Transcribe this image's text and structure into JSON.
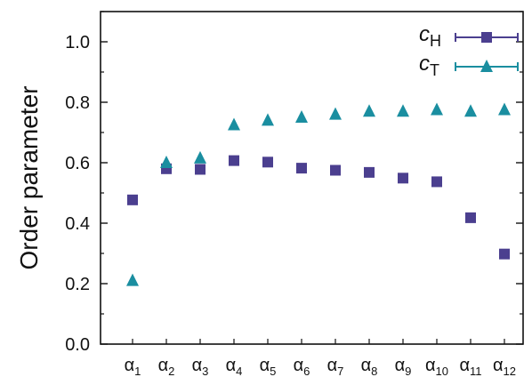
{
  "chart_data": {
    "type": "scatter",
    "title": "",
    "xlabel": "",
    "ylabel": "Order parameter",
    "ylim": [
      0.0,
      1.1
    ],
    "yticks": [
      "0.0",
      "0.2",
      "0.4",
      "0.6",
      "0.8",
      "1.0"
    ],
    "grid": false,
    "legend_position": "top-right",
    "categories": [
      {
        "base": "α",
        "sub": "1"
      },
      {
        "base": "α",
        "sub": "2"
      },
      {
        "base": "α",
        "sub": "3"
      },
      {
        "base": "α",
        "sub": "4"
      },
      {
        "base": "α",
        "sub": "5"
      },
      {
        "base": "α",
        "sub": "6"
      },
      {
        "base": "α",
        "sub": "7"
      },
      {
        "base": "α",
        "sub": "8"
      },
      {
        "base": "α",
        "sub": "9"
      },
      {
        "base": "α",
        "sub": "10"
      },
      {
        "base": "α",
        "sub": "11"
      },
      {
        "base": "α",
        "sub": "12"
      }
    ],
    "series": [
      {
        "name": "c",
        "name_sub": "H",
        "marker": "square",
        "color": "#4b3f8f",
        "values": [
          0.477,
          0.58,
          0.578,
          0.607,
          0.602,
          0.582,
          0.575,
          0.568,
          0.549,
          0.537,
          0.418,
          0.298
        ]
      },
      {
        "name": "c",
        "name_sub": "T",
        "marker": "triangle",
        "color": "#1a8ea0",
        "values": [
          0.21,
          0.6,
          0.615,
          0.725,
          0.74,
          0.75,
          0.76,
          0.77,
          0.77,
          0.775,
          0.77,
          0.775
        ]
      }
    ]
  }
}
